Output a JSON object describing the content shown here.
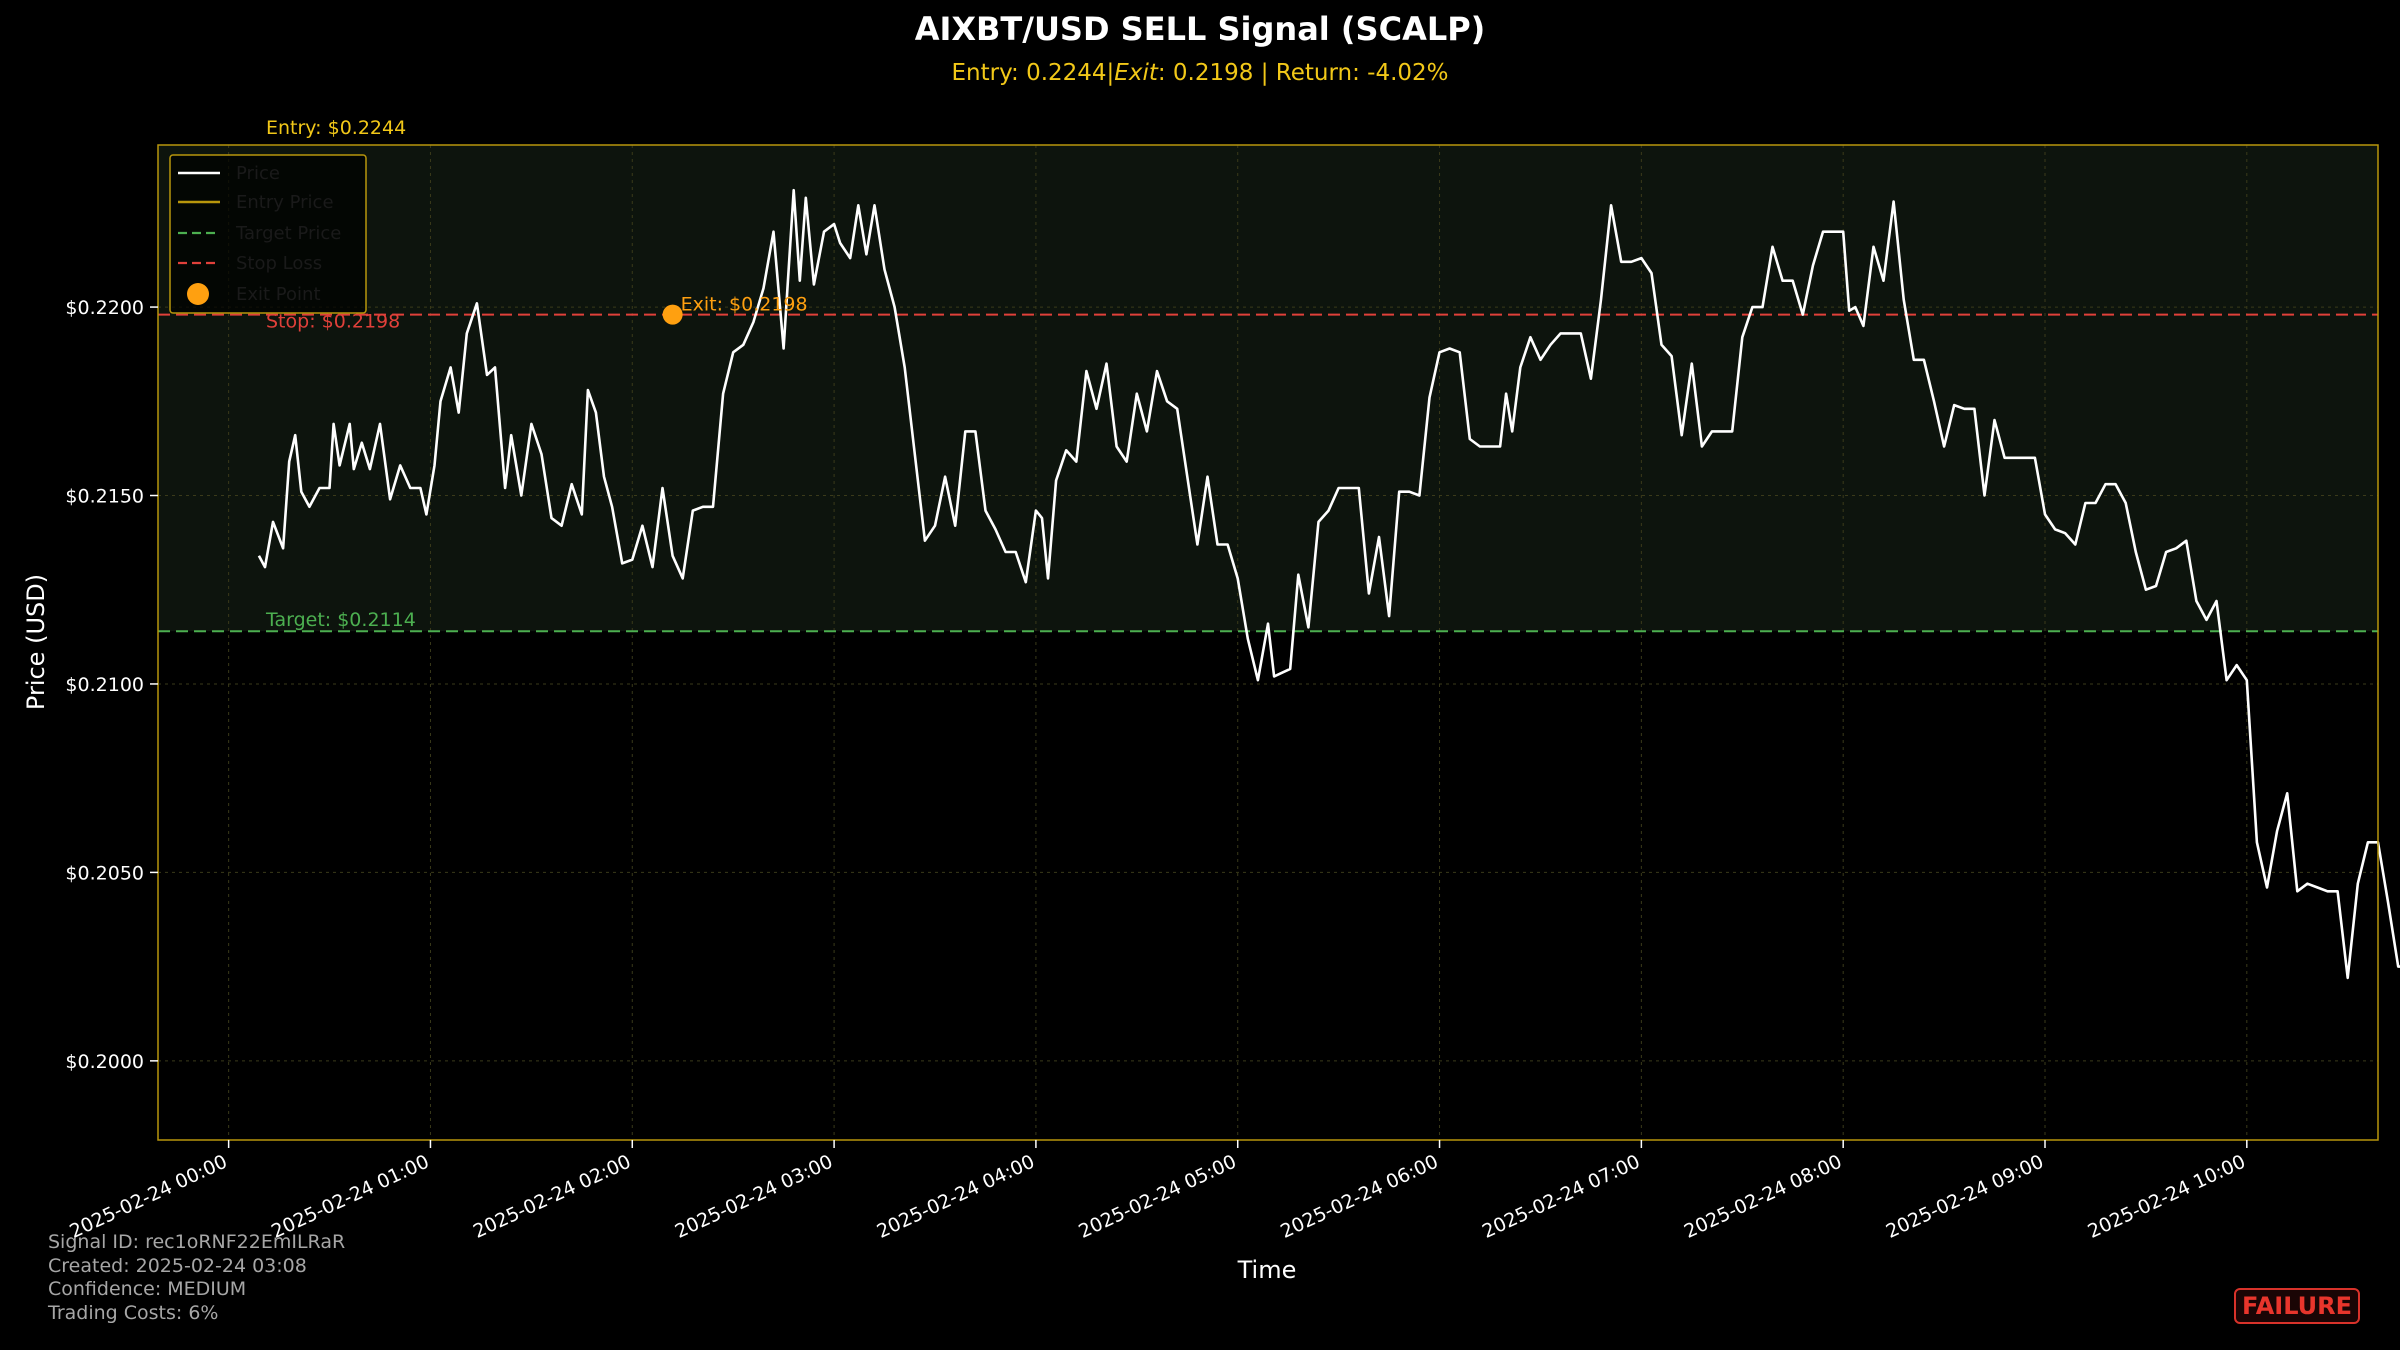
{
  "colors": {
    "background": "#000000",
    "price_line": "#ffffff",
    "entry": "#f2c818",
    "stop": "#e0403a",
    "target": "#4caf50",
    "exit_marker": "#ffa010",
    "frame": "#b8960c",
    "grid": "#3a3a1a",
    "zone_fill": "#0d140d",
    "status": "#e8352c"
  },
  "chart_data": {
    "type": "line",
    "title": "AIXBT/USD SELL Signal (SCALP)",
    "subtitle": "Entry: 0.2244|$Exit: $0.2198 | Return: -4.02%",
    "subtitle_parts": {
      "pre": "Entry: 0.2244|",
      "italic": "Exit",
      "post": ": 0.2198 | Return: -4.02%"
    },
    "xlabel": "Time",
    "ylabel": "Price (USD)",
    "x_ticks": [
      "2025-02-24 00:00",
      "2025-02-24 01:00",
      "2025-02-24 02:00",
      "2025-02-24 03:00",
      "2025-02-24 04:00",
      "2025-02-24 05:00",
      "2025-02-24 06:00",
      "2025-02-24 07:00",
      "2025-02-24 08:00",
      "2025-02-24 09:00",
      "2025-02-24 10:00"
    ],
    "y_ticks": [
      0.2,
      0.205,
      0.21,
      0.215,
      0.22
    ],
    "y_tick_labels": [
      "$0.2000",
      "$0.2050",
      "$0.2100",
      "$0.2150",
      "$0.2200"
    ],
    "xlim_hours": [
      -0.35,
      10.65
    ],
    "ylim": [
      0.1979,
      0.2243
    ],
    "grid": true,
    "legend_position": "top-left",
    "legend": [
      "Price",
      "Entry Price",
      "Target Price",
      "Stop Loss",
      "Exit Point"
    ],
    "levels": {
      "entry": {
        "value": 0.2244,
        "label": "Entry: $0.2244"
      },
      "stop": {
        "value": 0.2198,
        "label": "Stop: $0.2198"
      },
      "target": {
        "value": 0.2114,
        "label": "Target: $0.2114"
      }
    },
    "exit_point": {
      "x_hours": 2.2,
      "y": 0.2198,
      "label": "Exit: $0.2198"
    },
    "series": [
      {
        "name": "Price",
        "points": [
          [
            0.15,
            0.2134
          ],
          [
            0.18,
            0.2131
          ],
          [
            0.22,
            0.2143
          ],
          [
            0.27,
            0.2136
          ],
          [
            0.3,
            0.2159
          ],
          [
            0.33,
            0.2166
          ],
          [
            0.36,
            0.2151
          ],
          [
            0.4,
            0.2147
          ],
          [
            0.45,
            0.2152
          ],
          [
            0.5,
            0.2152
          ],
          [
            0.52,
            0.2169
          ],
          [
            0.55,
            0.2158
          ],
          [
            0.6,
            0.2169
          ],
          [
            0.62,
            0.2157
          ],
          [
            0.66,
            0.2164
          ],
          [
            0.7,
            0.2157
          ],
          [
            0.75,
            0.2169
          ],
          [
            0.8,
            0.2149
          ],
          [
            0.85,
            0.2158
          ],
          [
            0.9,
            0.2152
          ],
          [
            0.95,
            0.2152
          ],
          [
            0.98,
            0.2145
          ],
          [
            1.02,
            0.2158
          ],
          [
            1.05,
            0.2175
          ],
          [
            1.1,
            0.2184
          ],
          [
            1.14,
            0.2172
          ],
          [
            1.18,
            0.2193
          ],
          [
            1.23,
            0.2201
          ],
          [
            1.28,
            0.2182
          ],
          [
            1.32,
            0.2184
          ],
          [
            1.37,
            0.2152
          ],
          [
            1.4,
            0.2166
          ],
          [
            1.45,
            0.215
          ],
          [
            1.5,
            0.2169
          ],
          [
            1.55,
            0.2161
          ],
          [
            1.6,
            0.2144
          ],
          [
            1.65,
            0.2142
          ],
          [
            1.7,
            0.2153
          ],
          [
            1.75,
            0.2145
          ],
          [
            1.78,
            0.2178
          ],
          [
            1.82,
            0.2172
          ],
          [
            1.86,
            0.2155
          ],
          [
            1.9,
            0.2147
          ],
          [
            1.95,
            0.2132
          ],
          [
            2.0,
            0.2133
          ],
          [
            2.05,
            0.2142
          ],
          [
            2.1,
            0.2131
          ],
          [
            2.15,
            0.2152
          ],
          [
            2.2,
            0.2134
          ],
          [
            2.25,
            0.2128
          ],
          [
            2.3,
            0.2146
          ],
          [
            2.35,
            0.2147
          ],
          [
            2.4,
            0.2147
          ],
          [
            2.45,
            0.2177
          ],
          [
            2.5,
            0.2188
          ],
          [
            2.55,
            0.219
          ],
          [
            2.6,
            0.2196
          ],
          [
            2.65,
            0.2205
          ],
          [
            2.7,
            0.222
          ],
          [
            2.75,
            0.2189
          ],
          [
            2.8,
            0.2231
          ],
          [
            2.83,
            0.2207
          ],
          [
            2.86,
            0.2229
          ],
          [
            2.9,
            0.2206
          ],
          [
            2.95,
            0.222
          ],
          [
            3.0,
            0.2222
          ],
          [
            3.03,
            0.2217
          ],
          [
            3.08,
            0.2213
          ],
          [
            3.12,
            0.2227
          ],
          [
            3.16,
            0.2214
          ],
          [
            3.2,
            0.2227
          ],
          [
            3.25,
            0.221
          ],
          [
            3.3,
            0.22
          ],
          [
            3.35,
            0.2184
          ],
          [
            3.4,
            0.2161
          ],
          [
            3.45,
            0.2138
          ],
          [
            3.5,
            0.2142
          ],
          [
            3.55,
            0.2155
          ],
          [
            3.6,
            0.2142
          ],
          [
            3.65,
            0.2167
          ],
          [
            3.7,
            0.2167
          ],
          [
            3.75,
            0.2146
          ],
          [
            3.8,
            0.2141
          ],
          [
            3.85,
            0.2135
          ],
          [
            3.9,
            0.2135
          ],
          [
            3.95,
            0.2127
          ],
          [
            4.0,
            0.2146
          ],
          [
            4.03,
            0.2144
          ],
          [
            4.06,
            0.2128
          ],
          [
            4.1,
            0.2154
          ],
          [
            4.15,
            0.2162
          ],
          [
            4.2,
            0.2159
          ],
          [
            4.25,
            0.2183
          ],
          [
            4.3,
            0.2173
          ],
          [
            4.35,
            0.2185
          ],
          [
            4.4,
            0.2163
          ],
          [
            4.45,
            0.2159
          ],
          [
            4.5,
            0.2177
          ],
          [
            4.55,
            0.2167
          ],
          [
            4.6,
            0.2183
          ],
          [
            4.65,
            0.2175
          ],
          [
            4.7,
            0.2173
          ],
          [
            4.75,
            0.2155
          ],
          [
            4.8,
            0.2137
          ],
          [
            4.85,
            0.2155
          ],
          [
            4.9,
            0.2137
          ],
          [
            4.95,
            0.2137
          ],
          [
            5.0,
            0.2128
          ],
          [
            5.05,
            0.2112
          ],
          [
            5.1,
            0.2101
          ],
          [
            5.15,
            0.2116
          ],
          [
            5.18,
            0.2102
          ],
          [
            5.22,
            0.2103
          ],
          [
            5.26,
            0.2104
          ],
          [
            5.3,
            0.2129
          ],
          [
            5.35,
            0.2115
          ],
          [
            5.4,
            0.2143
          ],
          [
            5.45,
            0.2146
          ],
          [
            5.5,
            0.2152
          ],
          [
            5.55,
            0.2152
          ],
          [
            5.6,
            0.2152
          ],
          [
            5.65,
            0.2124
          ],
          [
            5.7,
            0.2139
          ],
          [
            5.75,
            0.2118
          ],
          [
            5.8,
            0.2151
          ],
          [
            5.85,
            0.2151
          ],
          [
            5.9,
            0.215
          ],
          [
            5.95,
            0.2176
          ],
          [
            6.0,
            0.2188
          ],
          [
            6.05,
            0.2189
          ],
          [
            6.1,
            0.2188
          ],
          [
            6.15,
            0.2165
          ],
          [
            6.2,
            0.2163
          ],
          [
            6.25,
            0.2163
          ],
          [
            6.3,
            0.2163
          ],
          [
            6.33,
            0.2177
          ],
          [
            6.36,
            0.2167
          ],
          [
            6.4,
            0.2184
          ],
          [
            6.45,
            0.2192
          ],
          [
            6.5,
            0.2186
          ],
          [
            6.55,
            0.219
          ],
          [
            6.6,
            0.2193
          ],
          [
            6.65,
            0.2193
          ],
          [
            6.7,
            0.2193
          ],
          [
            6.75,
            0.2181
          ],
          [
            6.8,
            0.2202
          ],
          [
            6.85,
            0.2227
          ],
          [
            6.9,
            0.2212
          ],
          [
            6.95,
            0.2212
          ],
          [
            7.0,
            0.2213
          ],
          [
            7.05,
            0.2209
          ],
          [
            7.1,
            0.219
          ],
          [
            7.15,
            0.2187
          ],
          [
            7.2,
            0.2166
          ],
          [
            7.25,
            0.2185
          ],
          [
            7.3,
            0.2163
          ],
          [
            7.35,
            0.2167
          ],
          [
            7.4,
            0.2167
          ],
          [
            7.45,
            0.2167
          ],
          [
            7.5,
            0.2192
          ],
          [
            7.55,
            0.22
          ],
          [
            7.6,
            0.22
          ],
          [
            7.65,
            0.2216
          ],
          [
            7.7,
            0.2207
          ],
          [
            7.75,
            0.2207
          ],
          [
            7.8,
            0.2198
          ],
          [
            7.85,
            0.2211
          ],
          [
            7.9,
            0.222
          ],
          [
            7.95,
            0.222
          ],
          [
            8.0,
            0.222
          ],
          [
            8.03,
            0.2199
          ],
          [
            8.06,
            0.22
          ],
          [
            8.1,
            0.2195
          ],
          [
            8.15,
            0.2216
          ],
          [
            8.2,
            0.2207
          ],
          [
            8.25,
            0.2228
          ],
          [
            8.3,
            0.2202
          ],
          [
            8.35,
            0.2186
          ],
          [
            8.4,
            0.2186
          ],
          [
            8.45,
            0.2175
          ],
          [
            8.5,
            0.2163
          ],
          [
            8.55,
            0.2174
          ],
          [
            8.6,
            0.2173
          ],
          [
            8.65,
            0.2173
          ],
          [
            8.7,
            0.215
          ],
          [
            8.75,
            0.217
          ],
          [
            8.8,
            0.216
          ],
          [
            8.85,
            0.216
          ],
          [
            8.9,
            0.216
          ],
          [
            8.95,
            0.216
          ],
          [
            9.0,
            0.2145
          ],
          [
            9.05,
            0.2141
          ],
          [
            9.1,
            0.214
          ],
          [
            9.15,
            0.2137
          ],
          [
            9.2,
            0.2148
          ],
          [
            9.25,
            0.2148
          ],
          [
            9.3,
            0.2153
          ],
          [
            9.35,
            0.2153
          ],
          [
            9.4,
            0.2148
          ],
          [
            9.45,
            0.2135
          ],
          [
            9.5,
            0.2125
          ],
          [
            9.55,
            0.2126
          ],
          [
            9.6,
            0.2135
          ],
          [
            9.65,
            0.2136
          ],
          [
            9.7,
            0.2138
          ],
          [
            9.75,
            0.2122
          ],
          [
            9.8,
            0.2117
          ],
          [
            9.85,
            0.2122
          ],
          [
            9.9,
            0.2101
          ],
          [
            9.95,
            0.2105
          ],
          [
            10.0,
            0.2101
          ],
          [
            10.05,
            0.2058
          ],
          [
            10.1,
            0.2046
          ],
          [
            10.15,
            0.2061
          ],
          [
            10.2,
            0.2071
          ],
          [
            10.25,
            0.2045
          ],
          [
            10.3,
            0.2047
          ],
          [
            10.35,
            0.2046
          ],
          [
            10.4,
            0.2045
          ],
          [
            10.45,
            0.2045
          ],
          [
            10.5,
            0.2022
          ],
          [
            10.55,
            0.2047
          ],
          [
            10.6,
            0.2058
          ],
          [
            10.65,
            0.2058
          ],
          [
            10.7,
            0.2042
          ],
          [
            10.75,
            0.2025
          ],
          [
            10.8,
            0.2025
          ],
          [
            10.85,
            0.2011
          ],
          [
            10.9,
            0.2022
          ],
          [
            10.95,
            0.2028
          ],
          [
            11.0,
            0.205
          ],
          [
            11.05,
            0.205
          ],
          [
            11.1,
            0.2031
          ],
          [
            11.15,
            0.2021
          ],
          [
            11.2,
            0.2028
          ],
          [
            11.25,
            0.2028
          ],
          [
            11.3,
            0.2007
          ],
          [
            11.35,
            0.2007
          ],
          [
            11.4,
            0.2007
          ],
          [
            11.45,
            0.2002
          ],
          [
            11.5,
            0.2008
          ],
          [
            11.55,
            0.2011
          ],
          [
            11.6,
            0.1992
          ],
          [
            11.65,
            0.2009
          ],
          [
            11.7,
            0.1996
          ]
        ]
      }
    ]
  },
  "info": {
    "signal_id": "Signal ID: rec1oRNF22EmILRaR",
    "created": "Created: 2025-02-24 03:08",
    "confidence": "Confidence: MEDIUM",
    "trading_costs": "Trading Costs: 6%"
  },
  "status": "FAILURE"
}
